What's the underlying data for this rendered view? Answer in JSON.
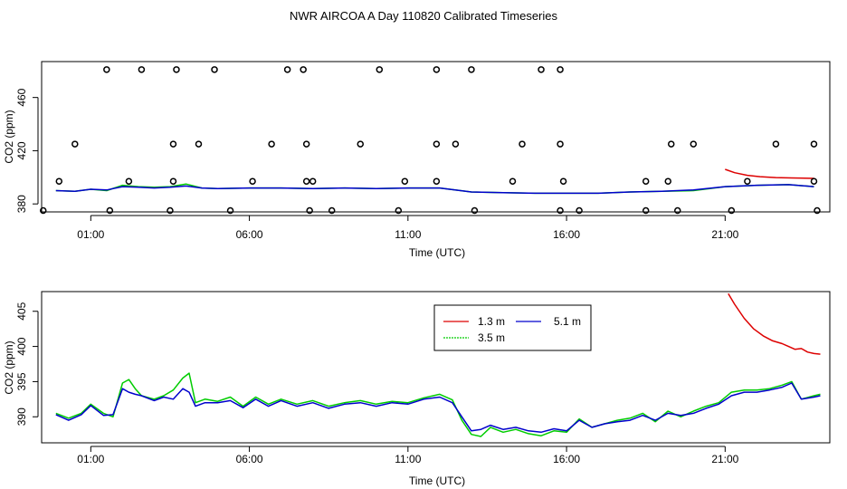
{
  "title": "NWR AIRCOA A  Day 110820  Calibrated Timeseries",
  "colors": {
    "1.3 m": "#dd0000",
    "3.5 m": "#00cc00",
    "5.1 m": "#0000cc"
  },
  "chart_data": [
    {
      "type": "line",
      "xlabel": "Time (UTC)",
      "ylabel": "CO2 (ppm)",
      "xlim": [
        -0.55,
        24.3
      ],
      "ylim": [
        374,
        487
      ],
      "x_ticks": [
        1,
        6,
        11,
        16,
        21
      ],
      "x_tick_labels": [
        "01:00",
        "06:00",
        "11:00",
        "16:00",
        "21:00"
      ],
      "y_ticks": [
        380,
        420,
        460
      ],
      "y_tick_labels": [
        "380",
        "420",
        "460"
      ],
      "grid": false,
      "legend": "none",
      "series": [
        {
          "name": "1.3 m",
          "color": "#dd0000",
          "x": [
            21.0,
            21.3,
            21.7,
            22.1,
            22.6,
            23.1,
            23.5,
            23.8
          ],
          "y": [
            406,
            403.5,
            401.5,
            400.5,
            399.8,
            399.5,
            399.3,
            399.2
          ]
        },
        {
          "name": "3.5 m",
          "color": "#00cc00",
          "x": [
            -0.1,
            0.5,
            1.0,
            1.5,
            2.0,
            2.5,
            3.0,
            3.5,
            4.0,
            4.5,
            5.0,
            6.0,
            7.0,
            8.0,
            9.0,
            10.0,
            11.0,
            12.0,
            13.0,
            14.0,
            15.0,
            16.0,
            17.0,
            18.0,
            19.0,
            20.0,
            21.0,
            22.0,
            23.0,
            23.8
          ],
          "y": [
            390,
            389.5,
            391,
            390,
            394,
            393,
            392.5,
            393,
            395,
            392,
            391.5,
            392,
            392,
            391.5,
            392,
            391.5,
            392,
            392,
            389,
            388.5,
            388,
            388,
            388,
            389,
            389.5,
            390,
            393,
            394,
            394.5,
            393
          ]
        },
        {
          "name": "5.1 m",
          "color": "#0000cc",
          "x": [
            -0.1,
            0.5,
            1.0,
            1.5,
            2.0,
            2.5,
            3.0,
            3.5,
            4.0,
            4.5,
            5.0,
            6.0,
            7.0,
            8.0,
            9.0,
            10.0,
            11.0,
            12.0,
            13.0,
            14.0,
            15.0,
            16.0,
            17.0,
            18.0,
            19.0,
            20.0,
            21.0,
            22.0,
            23.0,
            23.8
          ],
          "y": [
            390,
            389.5,
            391,
            390.5,
            393,
            392.5,
            392,
            392.5,
            393.5,
            392,
            391.5,
            392,
            392,
            391.5,
            392,
            391.5,
            392,
            392,
            389,
            388.5,
            388,
            388,
            388,
            389,
            389.5,
            390.5,
            393,
            394,
            394.5,
            393
          ]
        },
        {
          "name": "",
          "type": "scatter",
          "marker": "open-circle",
          "x": [
            1.5,
            2.6,
            3.7,
            4.9,
            7.2,
            7.7,
            10.1,
            11.9,
            13.0,
            15.2,
            15.8,
            0.5,
            3.6,
            4.4,
            6.7,
            7.8,
            9.5,
            11.9,
            12.5,
            14.6,
            15.8,
            19.3,
            20.0,
            22.6,
            23.8,
            0.0,
            2.2,
            3.6,
            6.1,
            7.8,
            8.0,
            10.9,
            11.9,
            14.3,
            15.9,
            18.5,
            19.2,
            21.7,
            23.8,
            -0.5,
            1.6,
            3.5,
            5.4,
            7.9,
            8.6,
            10.7,
            13.1,
            15.8,
            16.4,
            18.5,
            19.5,
            21.2,
            23.9
          ],
          "y": [
            481,
            481,
            481,
            481,
            481,
            481,
            481,
            481,
            481,
            481,
            481,
            425,
            425,
            425,
            425,
            425,
            425,
            425,
            425,
            425,
            425,
            425,
            425,
            425,
            425,
            397,
            397,
            397,
            397,
            397,
            397,
            397,
            397,
            397,
            397,
            397,
            397,
            397,
            397,
            375,
            375,
            375,
            375,
            375,
            375,
            375,
            375,
            375,
            375,
            375,
            375,
            375,
            375
          ]
        }
      ]
    },
    {
      "type": "line",
      "xlabel": "Time (UTC)",
      "ylabel": "CO2 (ppm)",
      "xlim": [
        -0.55,
        24.3
      ],
      "ylim": [
        386.3,
        407.8
      ],
      "x_ticks": [
        1,
        6,
        11,
        16,
        21
      ],
      "x_tick_labels": [
        "01:00",
        "06:00",
        "11:00",
        "16:00",
        "21:00"
      ],
      "y_ticks": [
        390,
        395,
        400,
        405
      ],
      "y_tick_labels": [
        "390",
        "395",
        "400",
        "405"
      ],
      "grid": false,
      "legend": "top-center",
      "series": [
        {
          "name": "1.3 m",
          "color": "#dd0000",
          "x": [
            21.1,
            21.3,
            21.6,
            21.9,
            22.2,
            22.5,
            22.8,
            23.0,
            23.2,
            23.4,
            23.6,
            23.8,
            24.0
          ],
          "y": [
            407.5,
            406,
            404,
            402.5,
            401.5,
            400.8,
            400.4,
            400.0,
            399.6,
            399.7,
            399.2,
            399.0,
            398.9
          ]
        },
        {
          "name": "3.5 m",
          "color": "#00cc00",
          "x": [
            -0.1,
            0.3,
            0.7,
            1.0,
            1.4,
            1.7,
            2.0,
            2.2,
            2.4,
            2.6,
            3.0,
            3.3,
            3.6,
            3.9,
            4.1,
            4.3,
            4.6,
            5.0,
            5.4,
            5.8,
            6.2,
            6.6,
            7.0,
            7.5,
            8.0,
            8.5,
            9.0,
            9.5,
            10.0,
            10.5,
            11.0,
            11.5,
            12.0,
            12.4,
            12.7,
            13.0,
            13.3,
            13.6,
            14.0,
            14.4,
            14.8,
            15.2,
            15.6,
            16.0,
            16.4,
            16.8,
            17.2,
            17.6,
            18.0,
            18.4,
            18.8,
            19.2,
            19.6,
            20.0,
            20.4,
            20.8,
            21.2,
            21.6,
            22.0,
            22.4,
            22.8,
            23.1,
            23.4,
            23.8,
            24.0
          ],
          "y": [
            390.5,
            389.8,
            390.5,
            391.8,
            390.5,
            390.0,
            394.8,
            395.3,
            394.0,
            393.0,
            392.5,
            393.0,
            393.8,
            395.5,
            396.2,
            392.0,
            392.5,
            392.2,
            392.8,
            391.5,
            392.8,
            391.8,
            392.5,
            391.8,
            392.3,
            391.5,
            392.0,
            392.3,
            391.8,
            392.2,
            392.0,
            392.7,
            393.2,
            392.4,
            389.5,
            387.5,
            387.2,
            388.5,
            387.8,
            388.2,
            387.6,
            387.3,
            388.0,
            387.8,
            389.7,
            388.5,
            389.0,
            389.5,
            389.8,
            390.5,
            389.3,
            390.8,
            390.0,
            390.8,
            391.5,
            392.0,
            393.5,
            393.8,
            393.8,
            394.0,
            394.5,
            395.0,
            392.5,
            393.0,
            393.2
          ]
        },
        {
          "name": "5.1 m",
          "color": "#0000cc",
          "x": [
            -0.1,
            0.3,
            0.7,
            1.0,
            1.4,
            1.7,
            2.0,
            2.2,
            2.4,
            2.6,
            3.0,
            3.3,
            3.6,
            3.9,
            4.1,
            4.3,
            4.6,
            5.0,
            5.4,
            5.8,
            6.2,
            6.6,
            7.0,
            7.5,
            8.0,
            8.5,
            9.0,
            9.5,
            10.0,
            10.5,
            11.0,
            11.5,
            12.0,
            12.4,
            12.7,
            13.0,
            13.3,
            13.6,
            14.0,
            14.4,
            14.8,
            15.2,
            15.6,
            16.0,
            16.4,
            16.8,
            17.2,
            17.6,
            18.0,
            18.4,
            18.8,
            19.2,
            19.6,
            20.0,
            20.4,
            20.8,
            21.2,
            21.6,
            22.0,
            22.4,
            22.8,
            23.1,
            23.4,
            23.8,
            24.0
          ],
          "y": [
            390.3,
            389.5,
            390.3,
            391.6,
            390.2,
            390.3,
            394.0,
            393.5,
            393.2,
            393.0,
            392.3,
            392.8,
            392.5,
            394.0,
            393.5,
            391.5,
            392.0,
            392.0,
            392.3,
            391.3,
            392.5,
            391.5,
            392.3,
            391.5,
            392.0,
            391.2,
            391.8,
            392.0,
            391.5,
            392.0,
            391.8,
            392.5,
            392.8,
            392.0,
            390.0,
            388.0,
            388.2,
            388.8,
            388.2,
            388.5,
            388.0,
            387.8,
            388.3,
            388.0,
            389.5,
            388.5,
            389.0,
            389.3,
            389.5,
            390.2,
            389.5,
            390.5,
            390.2,
            390.5,
            391.2,
            391.8,
            393.0,
            393.5,
            393.5,
            393.8,
            394.2,
            394.8,
            392.5,
            392.8,
            393.0
          ]
        }
      ]
    }
  ]
}
